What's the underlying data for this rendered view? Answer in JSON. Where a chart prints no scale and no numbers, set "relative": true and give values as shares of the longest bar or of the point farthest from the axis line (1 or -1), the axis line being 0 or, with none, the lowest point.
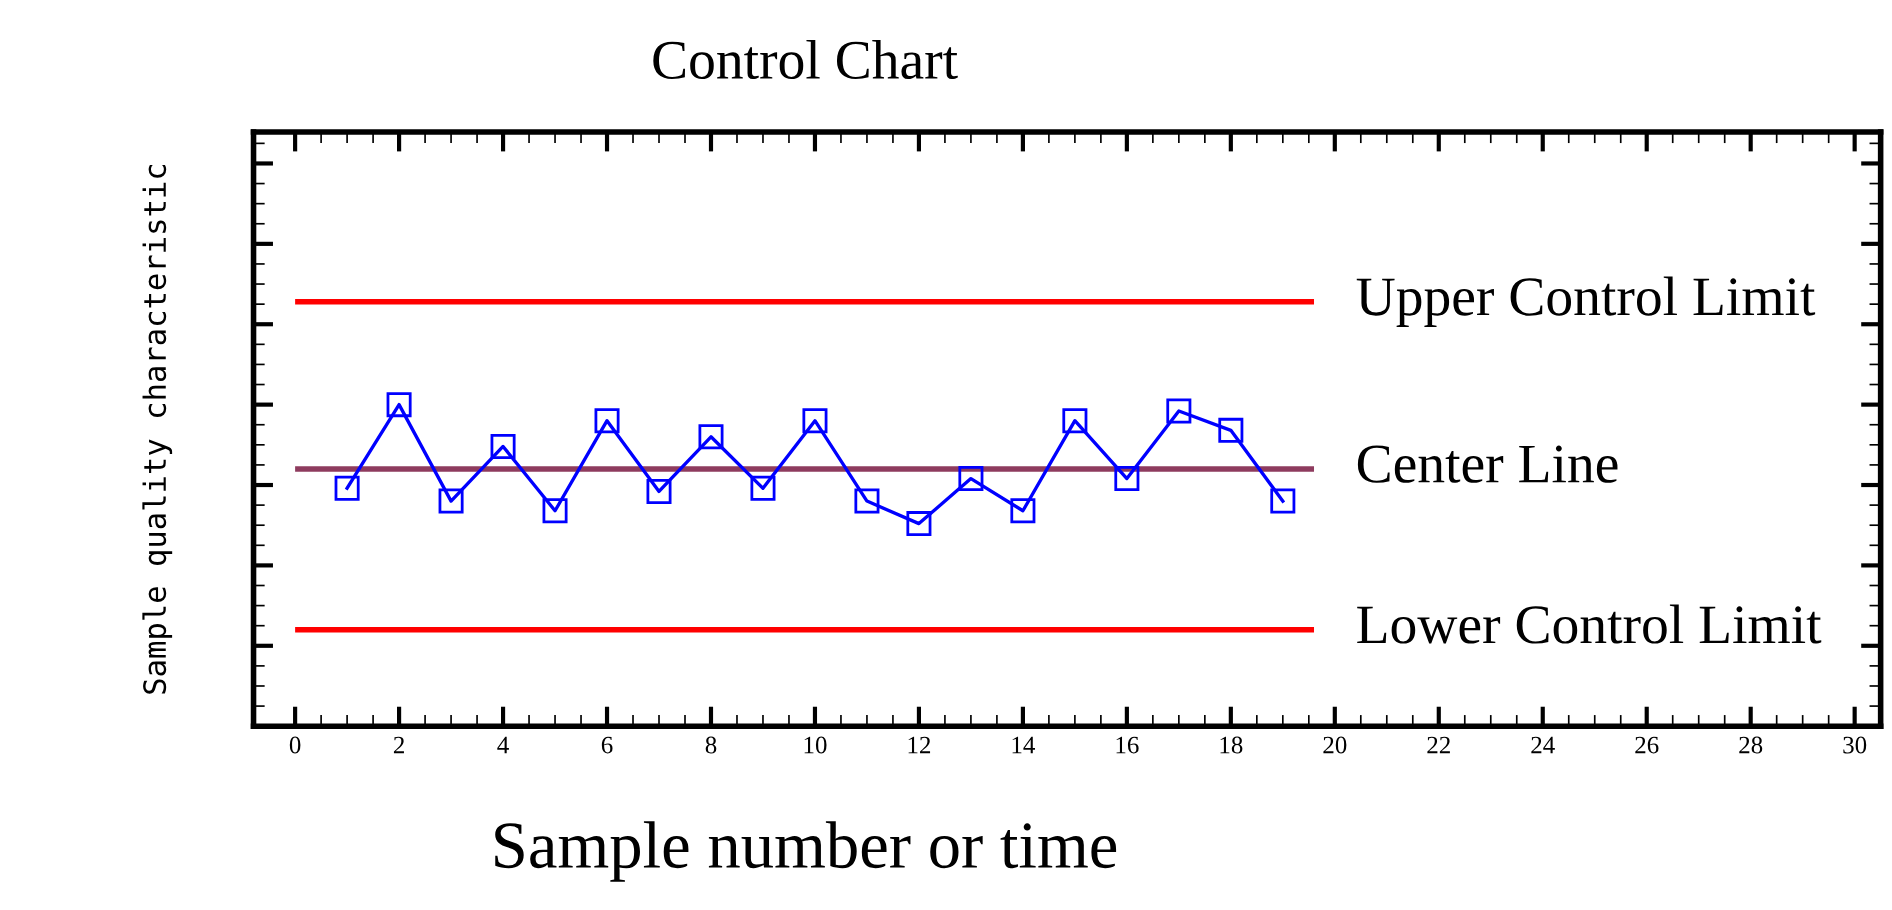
{
  "chart_data": {
    "type": "line",
    "title": "Control Chart",
    "xlabel": "Sample number or time",
    "ylabel": "Sample quality characteristic",
    "relative": true,
    "x": [
      1,
      2,
      3,
      4,
      5,
      6,
      7,
      8,
      9,
      10,
      11,
      12,
      13,
      14,
      15,
      16,
      17,
      18,
      19
    ],
    "series": [
      {
        "color": "#0000ff",
        "values": [
          0.74,
          1.0,
          0.7,
          0.87,
          0.67,
          0.95,
          0.73,
          0.9,
          0.74,
          0.95,
          0.7,
          0.63,
          0.77,
          0.67,
          0.95,
          0.77,
          0.98,
          0.92,
          0.7
        ]
      }
    ],
    "marker": "square",
    "line_style": "solid",
    "xlim": [
      -0.8,
      30.5
    ],
    "xticks": [
      0,
      2,
      4,
      6,
      8,
      10,
      12,
      14,
      16,
      18,
      20,
      22,
      24,
      26,
      28,
      30
    ],
    "tick_labels": "x",
    "grid": false,
    "legend": false,
    "ref_lines": [
      {
        "axis": "y",
        "value": 1.32,
        "label": "Upper Control Limit",
        "color": "#ff0000"
      },
      {
        "axis": "y",
        "value": 0.8,
        "label": "Center Line",
        "color": "#8e3b5e"
      },
      {
        "axis": "y",
        "value": 0.3,
        "label": "Lower Control Limit",
        "color": "#ff0000"
      }
    ]
  }
}
